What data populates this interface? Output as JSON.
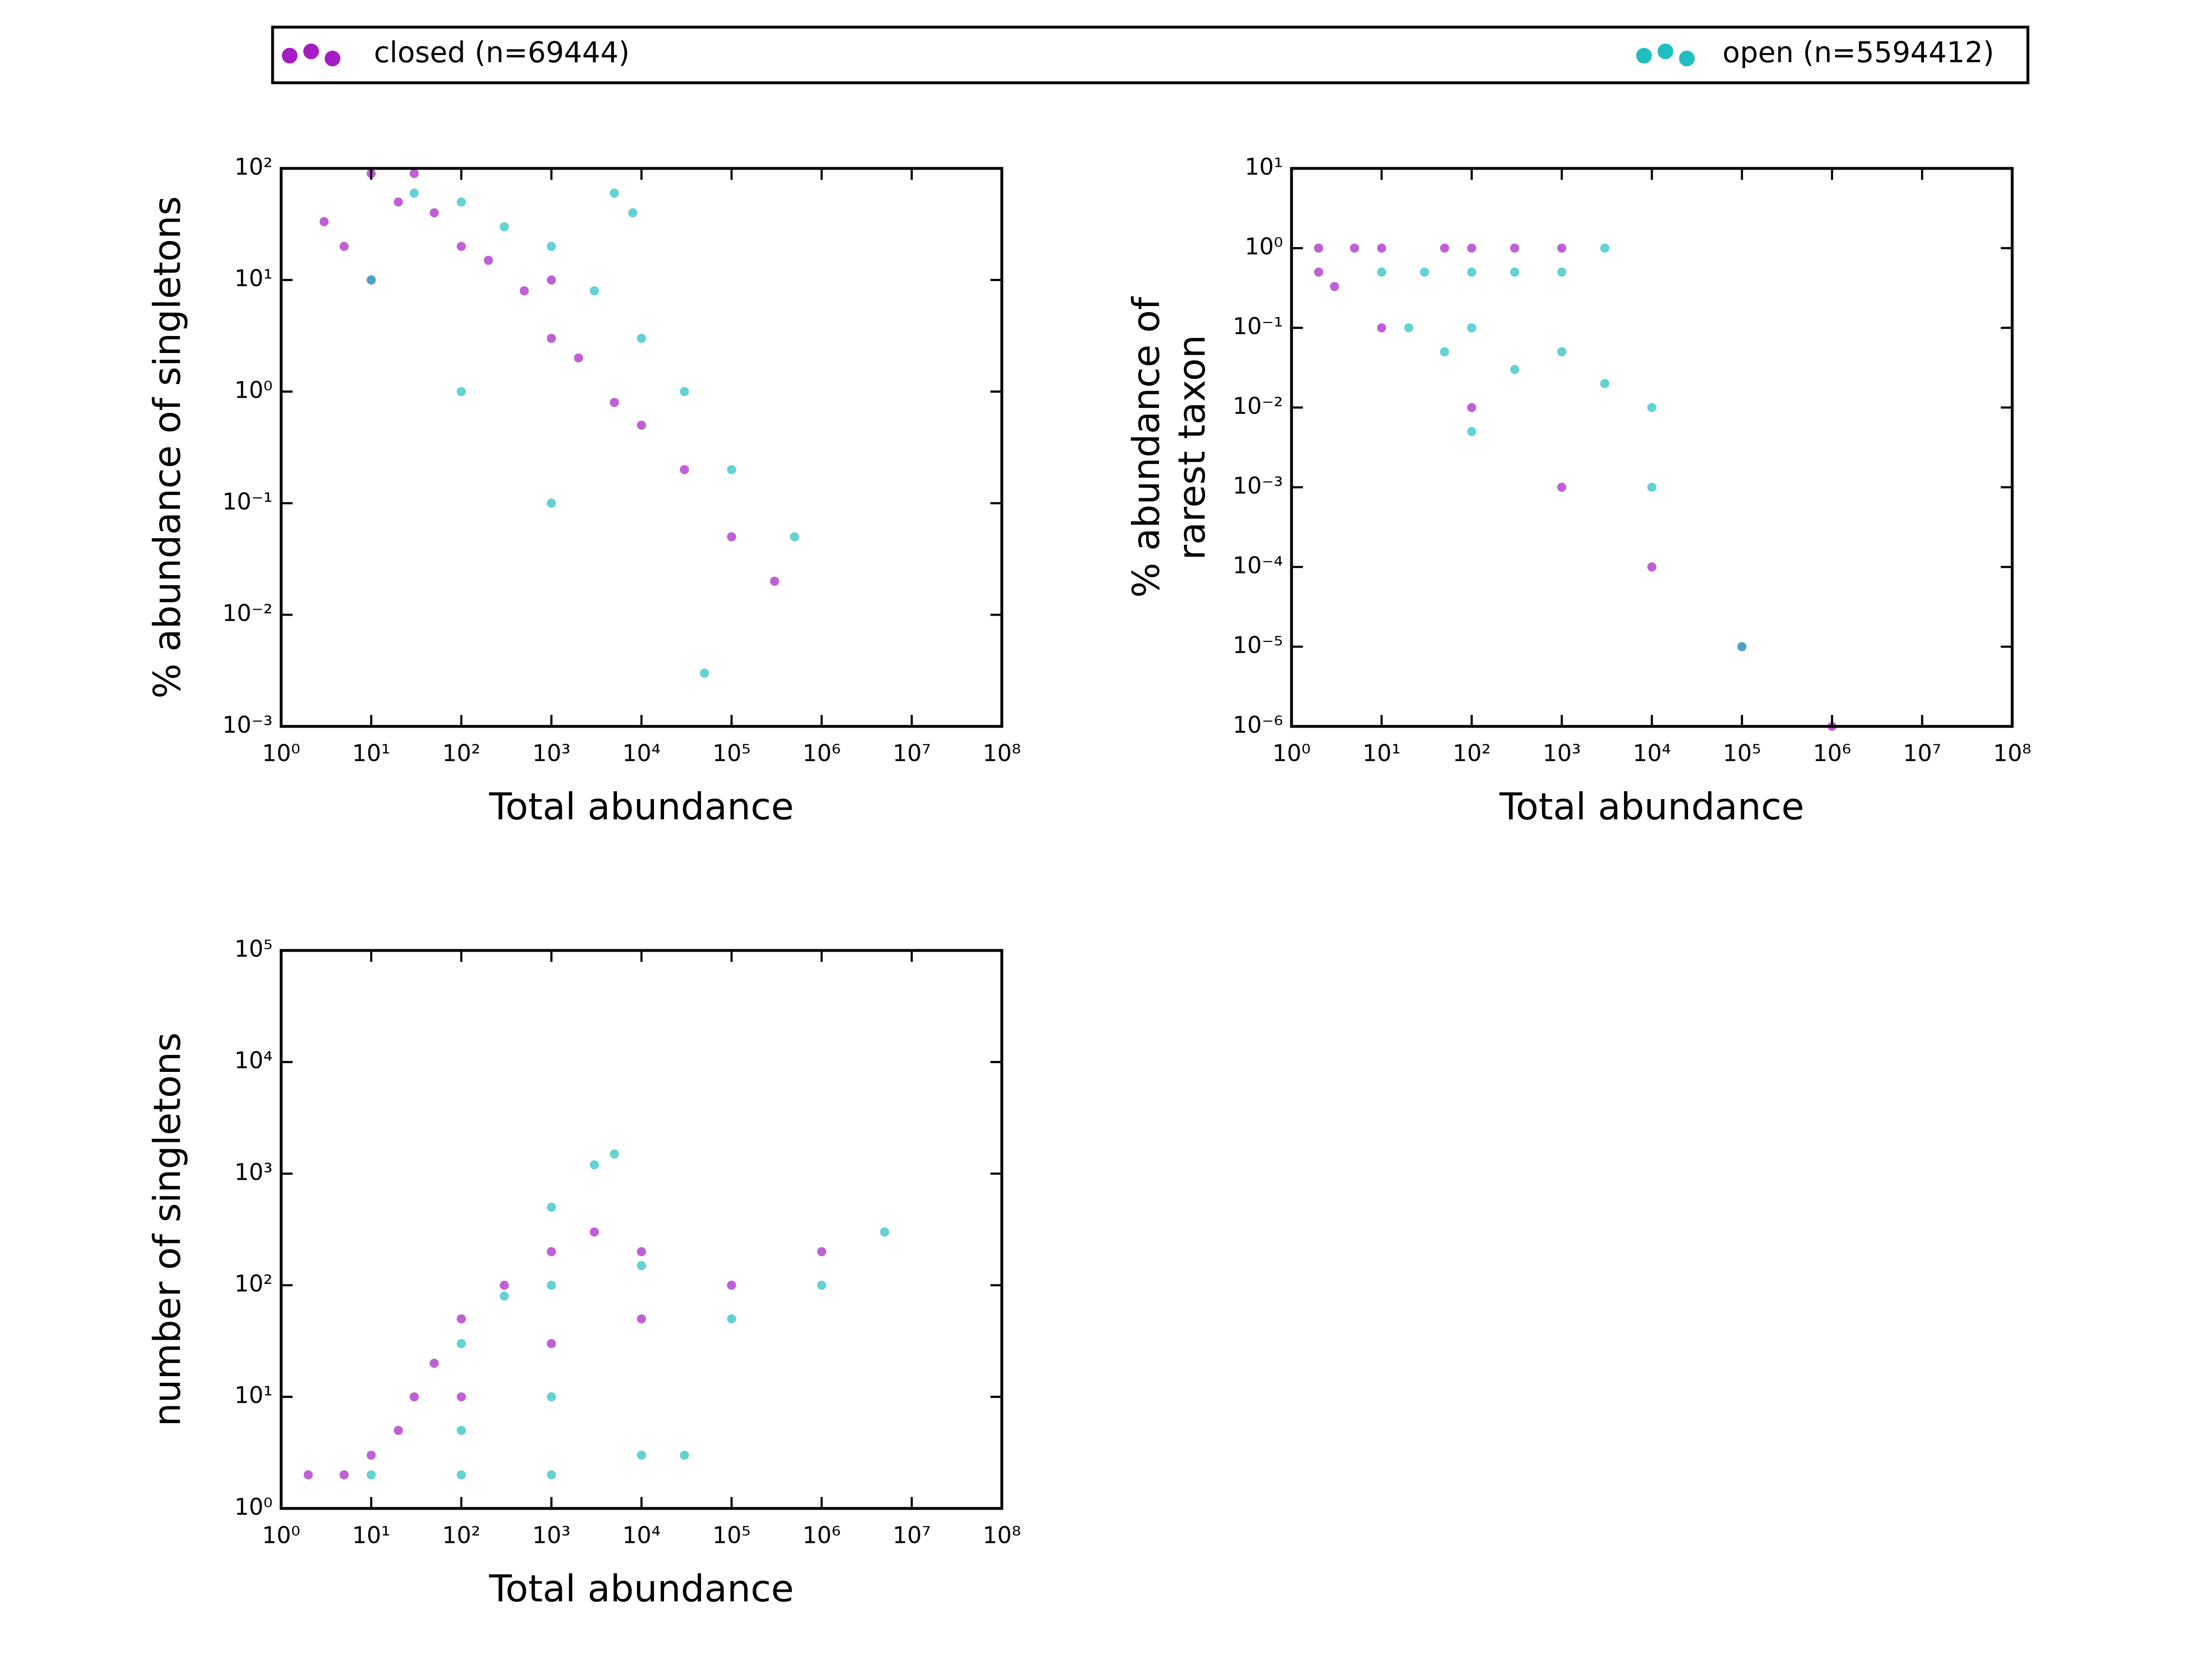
{
  "chart_data": [
    {
      "type": "scatter",
      "xlabel": "Total abundance",
      "ylabel": [
        "% abundance of singletons"
      ],
      "xscale": "log",
      "yscale": "log",
      "xlim": [
        1,
        100000000
      ],
      "ylim": [
        0.001,
        100
      ],
      "xticks": [
        {
          "value": 1,
          "label": "10⁰"
        },
        {
          "value": 10,
          "label": "10¹"
        },
        {
          "value": 100,
          "label": "10²"
        },
        {
          "value": 1000,
          "label": "10³"
        },
        {
          "value": 10000,
          "label": "10⁴"
        },
        {
          "value": 100000,
          "label": "10⁵"
        },
        {
          "value": 1000000,
          "label": "10⁶"
        },
        {
          "value": 10000000,
          "label": "10⁷"
        },
        {
          "value": 100000000,
          "label": "10⁸"
        }
      ],
      "yticks": [
        {
          "value": 0.001,
          "label": "10⁻³"
        },
        {
          "value": 0.01,
          "label": "10⁻²"
        },
        {
          "value": 0.1,
          "label": "10⁻¹"
        },
        {
          "value": 1,
          "label": "10⁰"
        },
        {
          "value": 10,
          "label": "10¹"
        },
        {
          "value": 100,
          "label": "10²"
        }
      ],
      "series": [
        {
          "name": "closed (n=69444)",
          "color": "#a51cc4",
          "x": [
            3,
            5,
            10,
            20,
            50,
            30,
            10,
            100,
            200,
            500,
            1000,
            1000,
            2000,
            5000,
            10000,
            30000,
            100000,
            300000
          ],
          "values": [
            33.3,
            20,
            10,
            50,
            40,
            90,
            90,
            20,
            15,
            8,
            3,
            10,
            2,
            0.8,
            0.5,
            0.2,
            0.05,
            0.02
          ]
        },
        {
          "name": "open (n=5594412)",
          "color": "#1fbfbf",
          "x": [
            10,
            100,
            1000,
            30,
            100,
            300,
            1000,
            3000,
            5000,
            8000,
            10000,
            30000,
            100000,
            500000,
            50000
          ],
          "values": [
            10,
            1,
            0.1,
            60,
            50,
            30,
            20,
            8,
            60,
            40,
            3,
            1,
            0.2,
            0.05,
            0.003
          ]
        }
      ]
    },
    {
      "type": "scatter",
      "xlabel": "Total abundance",
      "ylabel": [
        "% abundance of",
        "rarest taxon"
      ],
      "xscale": "log",
      "yscale": "log",
      "xlim": [
        1,
        100000000
      ],
      "ylim": [
        1e-06,
        10
      ],
      "xticks": [
        {
          "value": 1,
          "label": "10⁰"
        },
        {
          "value": 10,
          "label": "10¹"
        },
        {
          "value": 100,
          "label": "10²"
        },
        {
          "value": 1000,
          "label": "10³"
        },
        {
          "value": 10000,
          "label": "10⁴"
        },
        {
          "value": 100000,
          "label": "10⁵"
        },
        {
          "value": 1000000,
          "label": "10⁶"
        },
        {
          "value": 10000000,
          "label": "10⁷"
        },
        {
          "value": 100000000,
          "label": "10⁸"
        }
      ],
      "yticks": [
        {
          "value": 1e-06,
          "label": "10⁻⁶"
        },
        {
          "value": 1e-05,
          "label": "10⁻⁵"
        },
        {
          "value": 0.0001,
          "label": "10⁻⁴"
        },
        {
          "value": 0.001,
          "label": "10⁻³"
        },
        {
          "value": 0.01,
          "label": "10⁻²"
        },
        {
          "value": 0.1,
          "label": "10⁻¹"
        },
        {
          "value": 1,
          "label": "10⁰"
        },
        {
          "value": 10,
          "label": "10¹"
        }
      ],
      "series": [
        {
          "color": "#a51cc4",
          "x": [
            2,
            5,
            10,
            50,
            100,
            300,
            1000,
            2,
            3,
            10,
            100,
            1000,
            10000,
            100000,
            1000000
          ],
          "values": [
            1,
            1,
            1,
            1,
            1,
            1,
            1,
            0.5,
            0.33,
            0.1,
            0.01,
            0.001,
            0.0001,
            1e-05,
            1e-06
          ]
        },
        {
          "color": "#1fbfbf",
          "x": [
            10,
            30,
            100,
            300,
            1000,
            20,
            50,
            100,
            300,
            1000,
            3000,
            10000,
            10000,
            100000,
            3000,
            100
          ],
          "values": [
            0.5,
            0.5,
            0.5,
            0.5,
            0.5,
            0.1,
            0.05,
            0.1,
            0.03,
            0.05,
            0.02,
            0.01,
            0.001,
            1e-05,
            1,
            0.005
          ]
        }
      ]
    },
    {
      "type": "scatter",
      "xlabel": "Total abundance",
      "ylabel": [
        "number of singletons"
      ],
      "xscale": "log",
      "yscale": "log",
      "xlim": [
        1,
        100000000
      ],
      "ylim": [
        1,
        100000
      ],
      "xticks": [
        {
          "value": 1,
          "label": "10⁰"
        },
        {
          "value": 10,
          "label": "10¹"
        },
        {
          "value": 100,
          "label": "10²"
        },
        {
          "value": 1000,
          "label": "10³"
        },
        {
          "value": 10000,
          "label": "10⁴"
        },
        {
          "value": 100000,
          "label": "10⁵"
        },
        {
          "value": 1000000,
          "label": "10⁶"
        },
        {
          "value": 10000000,
          "label": "10⁷"
        },
        {
          "value": 100000000,
          "label": "10⁸"
        }
      ],
      "yticks": [
        {
          "value": 1,
          "label": "10⁰"
        },
        {
          "value": 10,
          "label": "10¹"
        },
        {
          "value": 100,
          "label": "10²"
        },
        {
          "value": 1000,
          "label": "10³"
        },
        {
          "value": 10000,
          "label": "10⁴"
        },
        {
          "value": 100000,
          "label": "10⁵"
        }
      ],
      "series": [
        {
          "color": "#a51cc4",
          "x": [
            2,
            5,
            10,
            20,
            30,
            50,
            100,
            300,
            1000,
            3000,
            10000,
            100,
            1000,
            10000,
            100000,
            1000000
          ],
          "values": [
            2,
            2,
            3,
            5,
            10,
            20,
            50,
            100,
            200,
            300,
            200,
            10,
            30,
            50,
            100,
            200
          ]
        },
        {
          "color": "#1fbfbf",
          "x": [
            10,
            100,
            1000,
            10000,
            100,
            1000,
            100,
            300,
            1000,
            3000,
            5000,
            1000,
            10000,
            100000,
            1000000,
            5000000,
            30000
          ],
          "values": [
            2,
            2,
            2,
            3,
            5,
            10,
            30,
            80,
            100,
            1200,
            1500,
            500,
            150,
            50,
            100,
            300,
            3
          ]
        }
      ]
    }
  ]
}
